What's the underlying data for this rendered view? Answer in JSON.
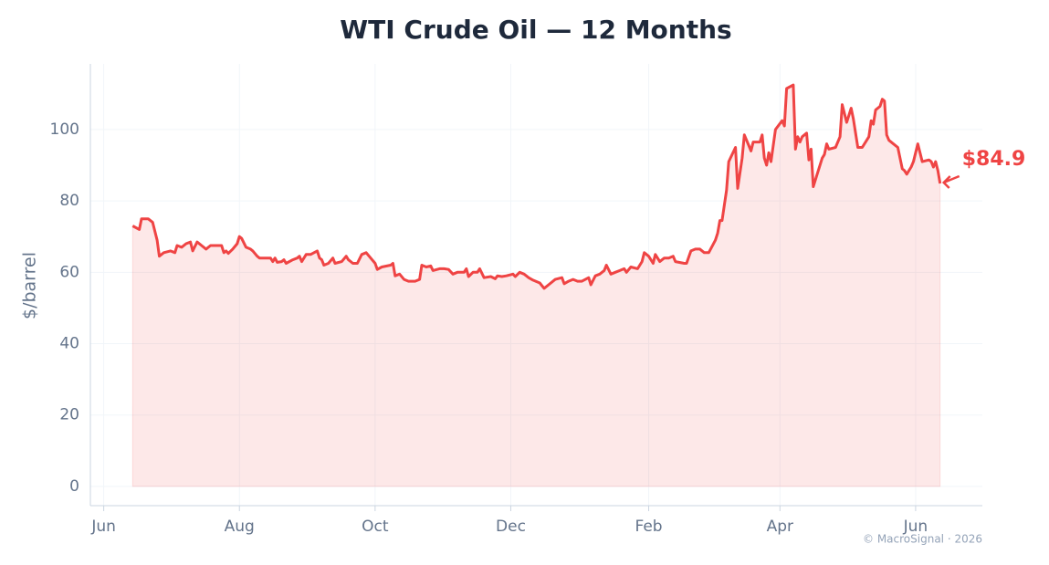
{
  "chart_data": {
    "type": "line",
    "title": "WTI Crude Oil — 12 Months",
    "ylabel": "$/barrel",
    "footer": "© MacroSignal · 2026",
    "annotation": "$84.9",
    "grid": true,
    "xlim": [
      -6,
      395
    ],
    "ylim": [
      -5.4,
      118.4
    ],
    "xticks": [
      {
        "value": 0,
        "label": "Jun"
      },
      {
        "value": 61,
        "label": "Aug"
      },
      {
        "value": 122,
        "label": "Oct"
      },
      {
        "value": 183,
        "label": "Dec"
      },
      {
        "value": 245,
        "label": "Feb"
      },
      {
        "value": 304,
        "label": "Apr"
      },
      {
        "value": 365,
        "label": "Jun"
      }
    ],
    "yticks": [
      0,
      20,
      40,
      60,
      80,
      100
    ],
    "x": [
      13,
      16,
      17,
      20,
      22,
      24,
      25,
      27,
      30,
      32,
      33,
      35,
      37,
      39,
      40,
      42,
      44,
      46,
      48,
      50,
      53,
      54,
      55,
      56,
      58,
      60,
      61,
      62,
      64,
      66,
      67,
      69,
      70,
      72,
      75,
      76,
      77,
      78,
      80,
      81,
      82,
      85,
      87,
      88,
      89,
      91,
      93,
      96,
      97,
      98,
      99,
      101,
      103,
      104,
      107,
      109,
      110,
      112,
      114,
      116,
      118,
      120,
      122,
      123,
      125,
      129,
      130,
      131,
      133,
      135,
      137,
      140,
      142,
      143,
      145,
      147,
      148,
      151,
      153,
      155,
      157,
      159,
      162,
      163,
      164,
      166,
      168,
      169,
      171,
      174,
      176,
      177,
      179,
      181,
      184,
      185,
      187,
      189,
      191,
      193,
      196,
      198,
      200,
      203,
      206,
      207,
      209,
      211,
      213,
      215,
      218,
      219,
      221,
      223,
      225,
      226,
      228,
      230,
      232,
      234,
      235,
      237,
      240,
      242,
      243,
      245,
      247,
      248,
      250,
      252,
      254,
      256,
      257,
      261,
      262,
      264,
      266,
      268,
      270,
      272,
      275,
      276,
      277,
      278,
      280,
      281,
      284,
      285,
      287,
      288,
      290,
      291,
      292,
      295,
      296,
      297,
      298,
      299,
      300,
      302,
      305,
      306,
      307,
      310,
      311,
      312,
      313,
      314,
      316,
      317,
      318,
      319,
      321,
      323,
      324,
      325,
      326,
      329,
      331,
      332,
      334,
      336,
      337,
      339,
      341,
      343,
      344,
      345,
      346,
      347,
      349,
      350,
      351,
      352,
      353,
      355,
      357,
      359,
      360,
      361,
      363,
      364,
      366,
      368,
      371,
      372,
      373,
      374,
      375,
      376
    ],
    "series": [
      {
        "name": "WTI",
        "color": "#ef4444",
        "values": [
          73,
          72,
          75,
          75,
          74,
          69,
          64.5,
          65.5,
          66,
          65.5,
          67.5,
          67,
          68,
          68.5,
          66,
          68.5,
          67.5,
          66.5,
          67.5,
          67.5,
          67.5,
          65.5,
          66,
          65.3,
          66.5,
          68,
          70,
          69.5,
          67,
          66.5,
          66,
          64.5,
          64,
          64,
          64,
          63,
          64,
          62.8,
          63,
          63.5,
          62.5,
          63.5,
          64,
          64.5,
          63,
          65,
          65,
          66,
          64,
          63.5,
          62,
          62.5,
          64,
          62.5,
          63,
          64.5,
          63.5,
          62.5,
          62.5,
          65,
          65.5,
          64,
          62.5,
          60.8,
          61.5,
          62,
          62.5,
          59,
          59.5,
          58,
          57.5,
          57.5,
          58,
          62,
          61.5,
          61.8,
          60.5,
          61,
          61,
          60.8,
          59.5,
          60,
          60,
          61,
          58.8,
          60,
          60,
          61,
          58.5,
          58.8,
          58.2,
          59,
          58.8,
          59,
          59.5,
          58.8,
          60,
          59.5,
          58.5,
          57.8,
          57,
          55.5,
          56.5,
          58,
          58.5,
          56.8,
          57.5,
          58,
          57.5,
          57.5,
          58.5,
          56.5,
          59,
          59.5,
          60.5,
          62,
          59.5,
          60,
          60.5,
          61,
          60,
          61.5,
          61,
          63,
          65.5,
          64.5,
          62.5,
          65,
          63,
          64,
          64,
          64.5,
          63,
          62.5,
          62.5,
          66,
          66.5,
          66.5,
          65.5,
          65.5,
          69,
          71,
          74.5,
          74.5,
          83,
          91,
          95,
          83.5,
          92,
          98.5,
          95.5,
          94,
          96.5,
          96.5,
          98.5,
          92,
          90,
          93.5,
          91,
          100,
          102.5,
          101,
          111.5,
          112.5,
          94.5,
          98,
          96.5,
          98,
          99,
          91.5,
          94.5,
          84,
          88,
          92,
          93,
          96,
          94.5,
          95,
          98,
          107,
          102,
          106,
          103,
          95,
          95,
          97,
          98,
          102.5,
          101.5,
          105.5,
          106.5,
          108.5,
          108,
          98.5,
          97,
          96,
          95,
          89,
          88.5,
          87.5,
          89.5,
          91,
          96,
          91,
          91.5,
          91,
          89.5,
          91,
          88.5,
          84.9
        ]
      }
    ]
  }
}
